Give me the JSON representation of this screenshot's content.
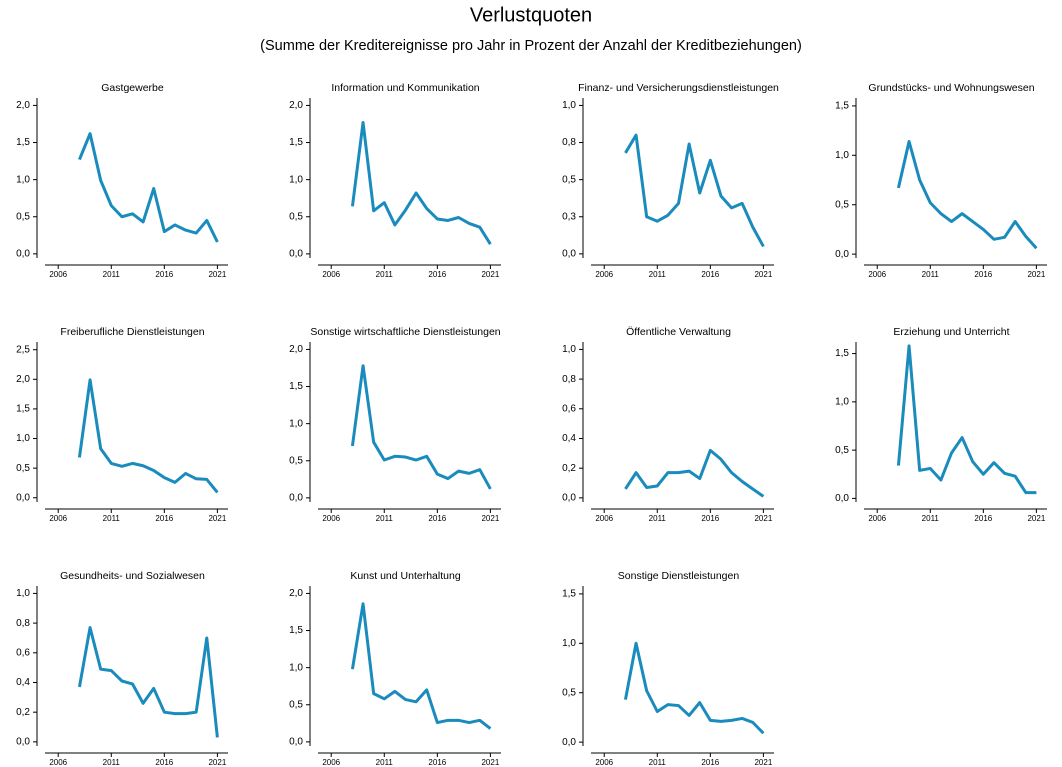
{
  "title": "Verlustquoten",
  "subtitle": "(Summe der Kreditereignisse pro Jahr in Prozent der Anzahl der Kreditbeziehungen)",
  "chart_data": [
    {
      "type": "line",
      "title": "Gastgewerbe",
      "color": "#1a8bbd",
      "x": [
        2008,
        2009,
        2010,
        2011,
        2012,
        2013,
        2014,
        2015,
        2016,
        2017,
        2018,
        2019,
        2020,
        2021
      ],
      "values": [
        1.27,
        1.62,
        0.99,
        0.65,
        0.5,
        0.54,
        0.43,
        0.88,
        0.3,
        0.39,
        0.32,
        0.28,
        0.45,
        0.16
      ],
      "xlim": [
        2004,
        2022
      ],
      "xticks": [
        2006,
        2011,
        2016,
        2021
      ],
      "ylim": [
        -0.15,
        2.1
      ],
      "yticks": [
        {
          "value": 0,
          "label": "0,0"
        },
        {
          "value": 0.5,
          "label": "0,5"
        },
        {
          "value": 1,
          "label": "1,0"
        },
        {
          "value": 1.5,
          "label": "1,5"
        },
        {
          "value": 2,
          "label": "2,0"
        }
      ]
    },
    {
      "type": "line",
      "title": "Information und Kommunikation",
      "color": "#1a8bbd",
      "x": [
        2008,
        2009,
        2010,
        2011,
        2012,
        2013,
        2014,
        2015,
        2016,
        2017,
        2018,
        2019,
        2020,
        2021
      ],
      "values": [
        0.64,
        1.77,
        0.58,
        0.69,
        0.39,
        0.59,
        0.82,
        0.61,
        0.47,
        0.45,
        0.49,
        0.41,
        0.36,
        0.13
      ],
      "xlim": [
        2004,
        2022
      ],
      "xticks": [
        2006,
        2011,
        2016,
        2021
      ],
      "ylim": [
        -0.15,
        2.1
      ],
      "yticks": [
        {
          "value": 0,
          "label": "0,0"
        },
        {
          "value": 0.5,
          "label": "0,5"
        },
        {
          "value": 1,
          "label": "1,0"
        },
        {
          "value": 1.5,
          "label": "1,5"
        },
        {
          "value": 2,
          "label": "2,0"
        }
      ]
    },
    {
      "type": "line",
      "title": "Finanz- und Versicherungsdienstleistungen",
      "color": "#1a8bbd",
      "x": [
        2008,
        2009,
        2010,
        2011,
        2012,
        2013,
        2014,
        2015,
        2016,
        2017,
        2018,
        2019,
        2020,
        2021
      ],
      "values": [
        0.68,
        0.8,
        0.25,
        0.22,
        0.26,
        0.34,
        0.74,
        0.41,
        0.63,
        0.39,
        0.31,
        0.34,
        0.18,
        0.05
      ],
      "xlim": [
        2004,
        2022
      ],
      "xticks": [
        2006,
        2011,
        2016,
        2021
      ],
      "ylim": [
        -0.075,
        1.05
      ],
      "yticks": [
        {
          "value": 0,
          "label": "0,0"
        },
        {
          "value": 0.25,
          "label": "0,3"
        },
        {
          "value": 0.5,
          "label": "0,5"
        },
        {
          "value": 0.75,
          "label": "0,8"
        },
        {
          "value": 1,
          "label": "1,0"
        }
      ]
    },
    {
      "type": "line",
      "title": "Grundstücks- und Wohnungswesen",
      "color": "#1a8bbd",
      "x": [
        2008,
        2009,
        2010,
        2011,
        2012,
        2013,
        2014,
        2015,
        2016,
        2017,
        2018,
        2019,
        2020,
        2021
      ],
      "values": [
        0.67,
        1.14,
        0.75,
        0.52,
        0.41,
        0.33,
        0.41,
        0.33,
        0.25,
        0.15,
        0.17,
        0.33,
        0.18,
        0.06
      ],
      "xlim": [
        2004,
        2022
      ],
      "xticks": [
        2006,
        2011,
        2016,
        2021
      ],
      "ylim": [
        -0.11,
        1.58
      ],
      "yticks": [
        {
          "value": 0,
          "label": "0,0"
        },
        {
          "value": 0.5,
          "label": "0,5"
        },
        {
          "value": 1,
          "label": "1,0"
        },
        {
          "value": 1.5,
          "label": "1,5"
        }
      ]
    },
    {
      "type": "line",
      "title": "Freiberufliche Dienstleistungen",
      "color": "#1a8bbd",
      "x": [
        2008,
        2009,
        2010,
        2011,
        2012,
        2013,
        2014,
        2015,
        2016,
        2017,
        2018,
        2019,
        2020,
        2021
      ],
      "values": [
        0.68,
        1.99,
        0.83,
        0.58,
        0.53,
        0.58,
        0.54,
        0.46,
        0.34,
        0.26,
        0.41,
        0.32,
        0.31,
        0.09
      ],
      "xlim": [
        2004,
        2022
      ],
      "xticks": [
        2006,
        2011,
        2016,
        2021
      ],
      "ylim": [
        -0.19,
        2.63
      ],
      "yticks": [
        {
          "value": 0,
          "label": "0,0"
        },
        {
          "value": 0.5,
          "label": "0,5"
        },
        {
          "value": 1,
          "label": "1,0"
        },
        {
          "value": 1.5,
          "label": "1,5"
        },
        {
          "value": 2,
          "label": "2,0"
        },
        {
          "value": 2.5,
          "label": "2,5"
        }
      ]
    },
    {
      "type": "line",
      "title": "Sonstige wirtschaftliche Dienstleistungen",
      "color": "#1a8bbd",
      "x": [
        2008,
        2009,
        2010,
        2011,
        2012,
        2013,
        2014,
        2015,
        2016,
        2017,
        2018,
        2019,
        2020,
        2021
      ],
      "values": [
        0.7,
        1.78,
        0.75,
        0.51,
        0.56,
        0.55,
        0.51,
        0.56,
        0.32,
        0.26,
        0.36,
        0.33,
        0.38,
        0.12
      ],
      "xlim": [
        2004,
        2022
      ],
      "xticks": [
        2006,
        2011,
        2016,
        2021
      ],
      "ylim": [
        -0.15,
        2.1
      ],
      "yticks": [
        {
          "value": 0,
          "label": "0,0"
        },
        {
          "value": 0.5,
          "label": "0,5"
        },
        {
          "value": 1,
          "label": "1,0"
        },
        {
          "value": 1.5,
          "label": "1,5"
        },
        {
          "value": 2,
          "label": "2,0"
        }
      ]
    },
    {
      "type": "line",
      "title": "Öffentliche Verwaltung",
      "color": "#1a8bbd",
      "x": [
        2008,
        2009,
        2010,
        2011,
        2012,
        2013,
        2014,
        2015,
        2016,
        2017,
        2018,
        2019,
        2020,
        2021
      ],
      "values": [
        0.06,
        0.17,
        0.07,
        0.08,
        0.17,
        0.17,
        0.18,
        0.13,
        0.32,
        0.26,
        0.17,
        0.11,
        0.06,
        0.01
      ],
      "xlim": [
        2004,
        2022
      ],
      "xticks": [
        2006,
        2011,
        2016,
        2021
      ],
      "ylim": [
        -0.075,
        1.05
      ],
      "yticks": [
        {
          "value": 0,
          "label": "0,0"
        },
        {
          "value": 0.2,
          "label": "0,2"
        },
        {
          "value": 0.4,
          "label": "0,4"
        },
        {
          "value": 0.6,
          "label": "0,6"
        },
        {
          "value": 0.8,
          "label": "0,8"
        },
        {
          "value": 1,
          "label": "1,0"
        }
      ]
    },
    {
      "type": "line",
      "title": "Erziehung und Unterricht",
      "color": "#1a8bbd",
      "x": [
        2008,
        2009,
        2010,
        2011,
        2012,
        2013,
        2014,
        2015,
        2016,
        2017,
        2018,
        2019,
        2020,
        2021
      ],
      "values": [
        0.34,
        1.58,
        0.29,
        0.31,
        0.19,
        0.47,
        0.63,
        0.38,
        0.25,
        0.37,
        0.26,
        0.23,
        0.06,
        0.06
      ],
      "xlim": [
        2004,
        2022
      ],
      "xticks": [
        2006,
        2011,
        2016,
        2021
      ],
      "ylim": [
        -0.11,
        1.62
      ],
      "yticks": [
        {
          "value": 0,
          "label": "0,0"
        },
        {
          "value": 0.5,
          "label": "0,5"
        },
        {
          "value": 1,
          "label": "1,0"
        },
        {
          "value": 1.5,
          "label": "1,5"
        }
      ]
    },
    {
      "type": "line",
      "title": "Gesundheits- und Sozialwesen",
      "color": "#1a8bbd",
      "x": [
        2008,
        2009,
        2010,
        2011,
        2012,
        2013,
        2014,
        2015,
        2016,
        2017,
        2018,
        2019,
        2020,
        2021
      ],
      "values": [
        0.37,
        0.77,
        0.49,
        0.48,
        0.41,
        0.39,
        0.26,
        0.36,
        0.2,
        0.19,
        0.19,
        0.2,
        0.7,
        0.03
      ],
      "xlim": [
        2004,
        2022
      ],
      "xticks": [
        2006,
        2011,
        2016,
        2021
      ],
      "ylim": [
        -0.075,
        1.05
      ],
      "yticks": [
        {
          "value": 0,
          "label": "0,0"
        },
        {
          "value": 0.2,
          "label": "0,2"
        },
        {
          "value": 0.4,
          "label": "0,4"
        },
        {
          "value": 0.6,
          "label": "0,6"
        },
        {
          "value": 0.8,
          "label": "0,8"
        },
        {
          "value": 1,
          "label": "1,0"
        }
      ]
    },
    {
      "type": "line",
      "title": "Kunst und Unterhaltung",
      "color": "#1a8bbd",
      "x": [
        2008,
        2009,
        2010,
        2011,
        2012,
        2013,
        2014,
        2015,
        2016,
        2017,
        2018,
        2019,
        2020,
        2021
      ],
      "values": [
        0.98,
        1.86,
        0.65,
        0.58,
        0.68,
        0.57,
        0.54,
        0.7,
        0.26,
        0.29,
        0.29,
        0.26,
        0.29,
        0.18
      ],
      "xlim": [
        2004,
        2022
      ],
      "xticks": [
        2006,
        2011,
        2016,
        2021
      ],
      "ylim": [
        -0.15,
        2.1
      ],
      "yticks": [
        {
          "value": 0,
          "label": "0,0"
        },
        {
          "value": 0.5,
          "label": "0,5"
        },
        {
          "value": 1,
          "label": "1,0"
        },
        {
          "value": 1.5,
          "label": "1,5"
        },
        {
          "value": 2,
          "label": "2,0"
        }
      ]
    },
    {
      "type": "line",
      "title": "Sonstige Dienstleistungen",
      "color": "#1a8bbd",
      "x": [
        2008,
        2009,
        2010,
        2011,
        2012,
        2013,
        2014,
        2015,
        2016,
        2017,
        2018,
        2019,
        2020,
        2021
      ],
      "values": [
        0.43,
        1.0,
        0.52,
        0.31,
        0.38,
        0.37,
        0.27,
        0.4,
        0.22,
        0.21,
        0.22,
        0.24,
        0.2,
        0.09
      ],
      "xlim": [
        2004,
        2022
      ],
      "xticks": [
        2006,
        2011,
        2016,
        2021
      ],
      "ylim": [
        -0.11,
        1.58
      ],
      "yticks": [
        {
          "value": 0,
          "label": "0,0"
        },
        {
          "value": 0.5,
          "label": "0,5"
        },
        {
          "value": 1,
          "label": "1,0"
        },
        {
          "value": 1.5,
          "label": "1,5"
        }
      ]
    }
  ]
}
